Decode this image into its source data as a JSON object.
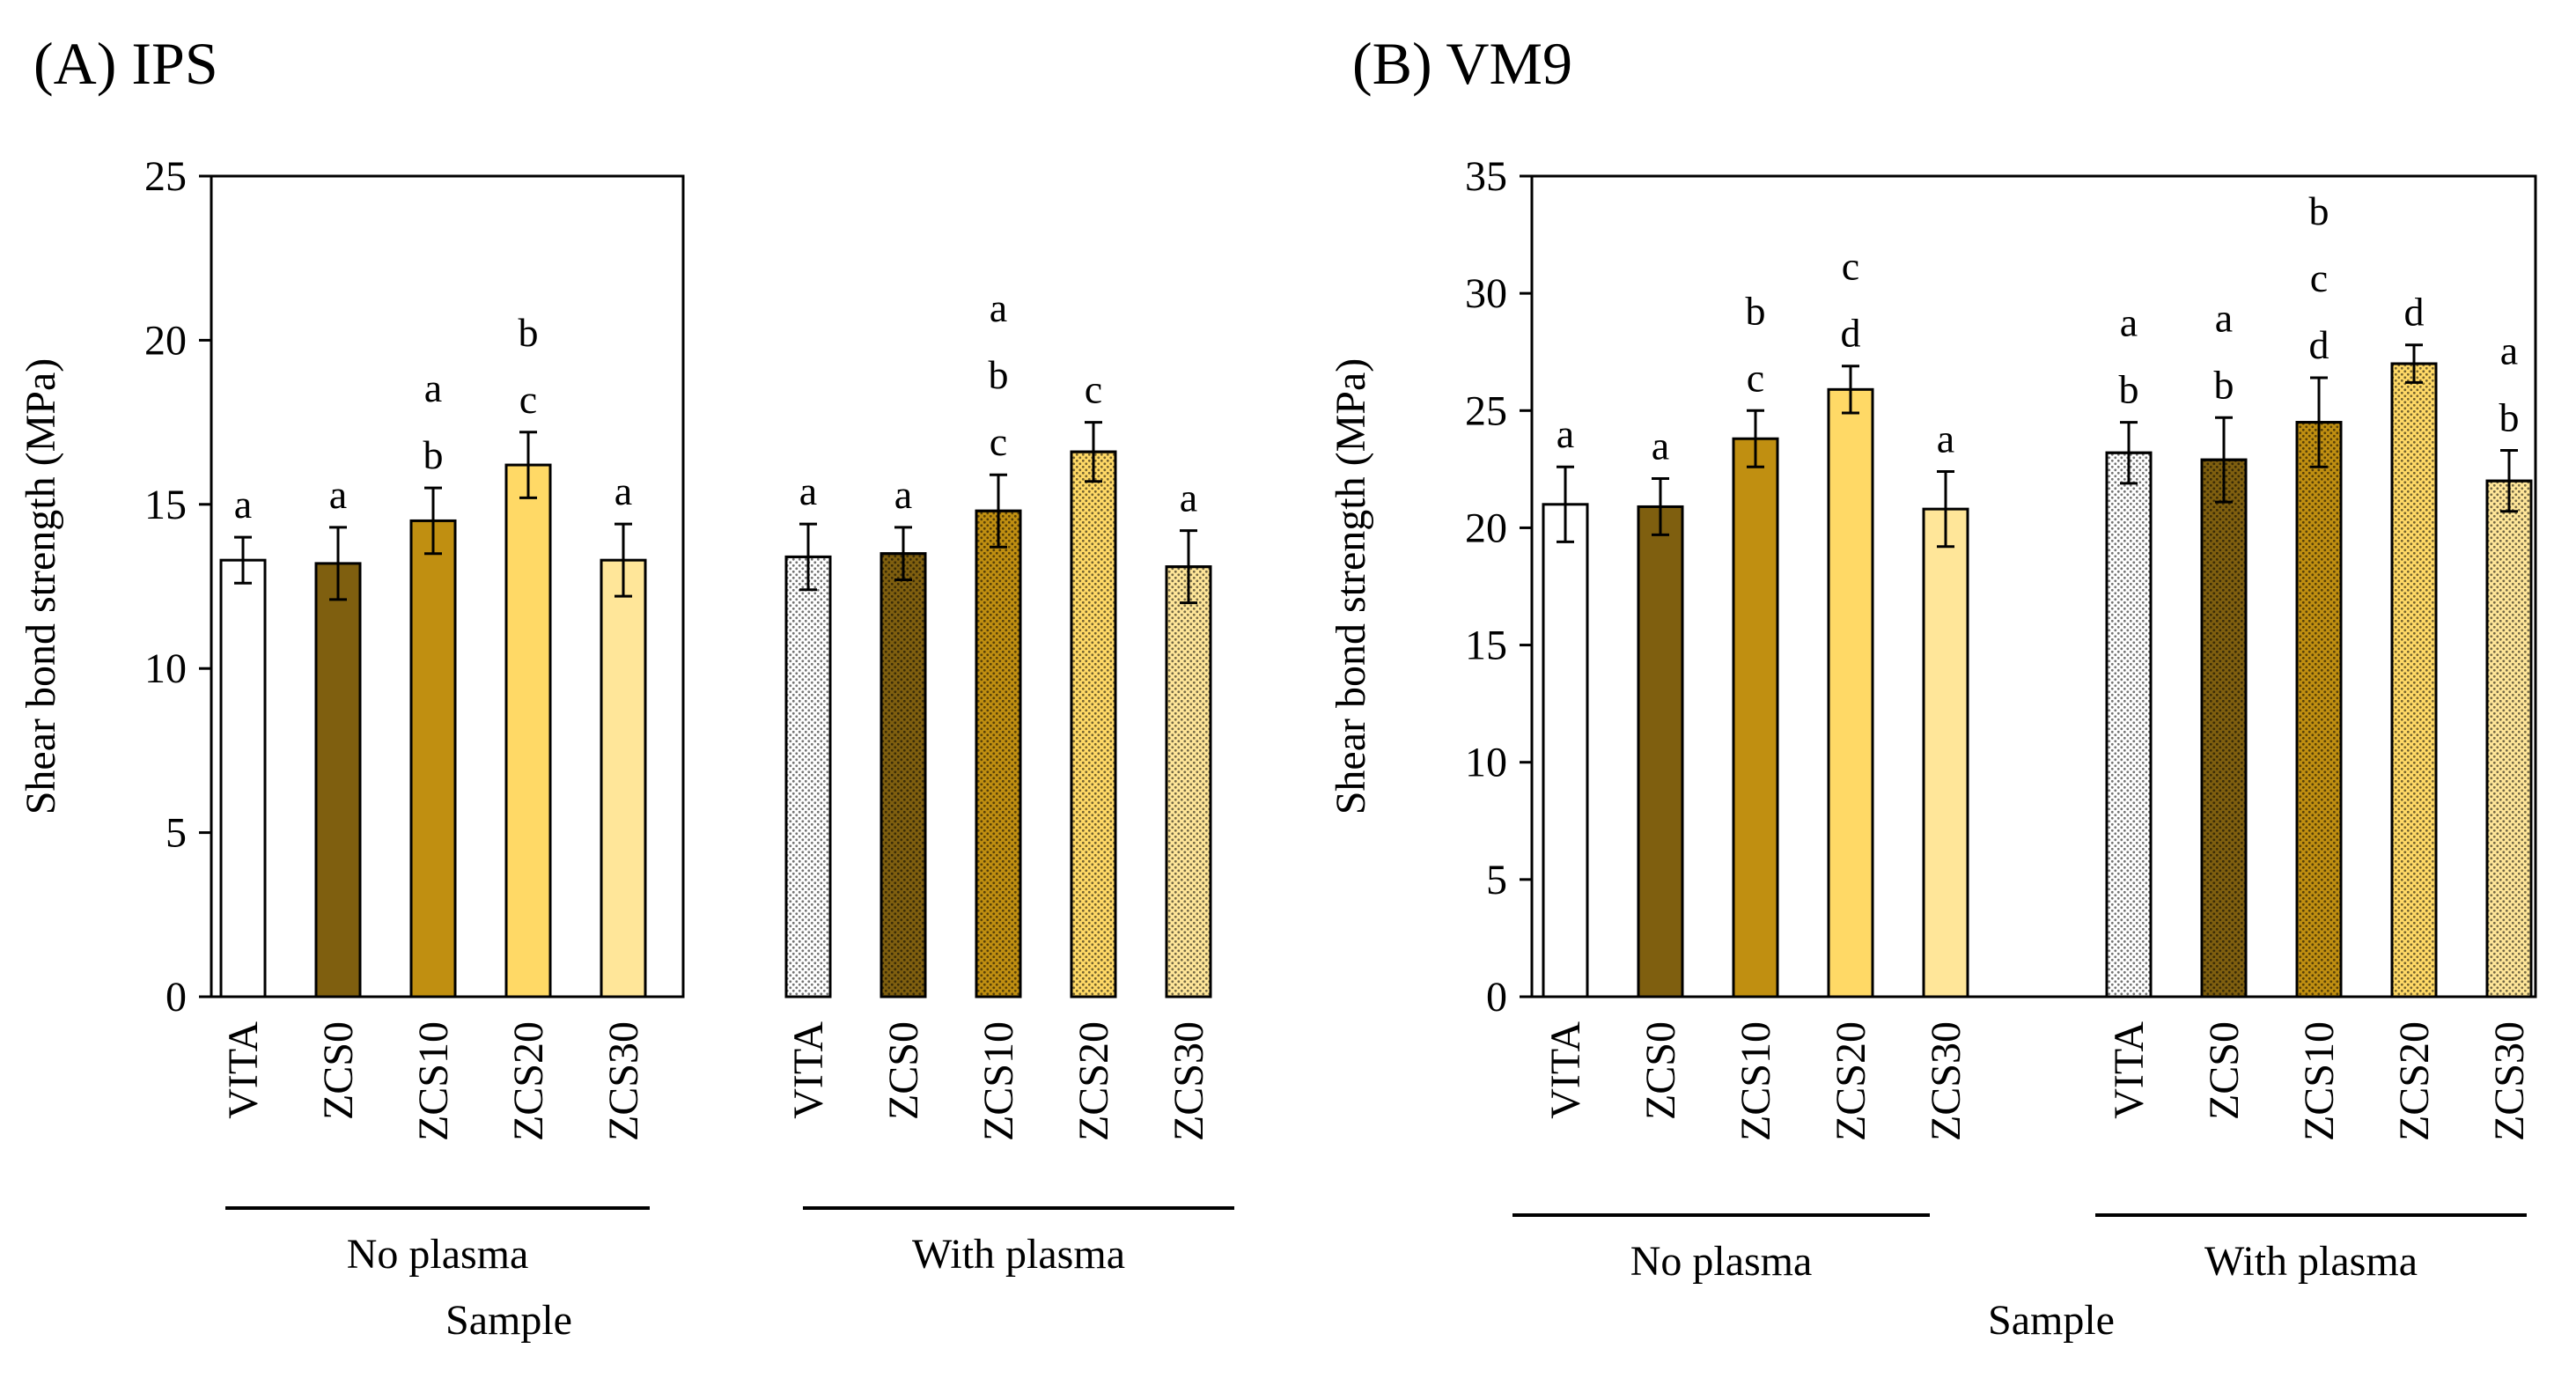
{
  "chart_data": [
    {
      "type": "bar",
      "title": "(A) IPS",
      "xlabel": "Sample",
      "ylabel": "Shear bond strength (MPa)",
      "ylim": [
        0,
        25
      ],
      "yticks": [
        0,
        5,
        10,
        15,
        20,
        25
      ],
      "groups": [
        {
          "name": "No plasma",
          "categories": [
            "VITA",
            "ZCS0",
            "ZCS10",
            "ZCS20",
            "ZCS30"
          ],
          "values": [
            13.3,
            13.2,
            14.5,
            16.2,
            13.3
          ],
          "errors": [
            0.7,
            1.1,
            1.0,
            1.0,
            1.1
          ],
          "letters": [
            [
              "a"
            ],
            [
              "a"
            ],
            [
              "a",
              "b"
            ],
            [
              "b",
              "c"
            ],
            [
              "a"
            ]
          ]
        },
        {
          "name": "With plasma",
          "categories": [
            "VITA",
            "ZCS0",
            "ZCS10",
            "ZCS20",
            "ZCS30"
          ],
          "values": [
            13.4,
            13.5,
            14.8,
            16.6,
            13.1
          ],
          "errors": [
            1.0,
            0.8,
            1.1,
            0.9,
            1.1
          ],
          "letters": [
            [
              "a"
            ],
            [
              "a"
            ],
            [
              "a",
              "b",
              "c"
            ],
            [
              "c"
            ],
            [
              "a"
            ]
          ]
        }
      ]
    },
    {
      "type": "bar",
      "title": "(B) VM9",
      "xlabel": "Sample",
      "ylabel": "Shear bond strength (MPa)",
      "ylim": [
        0,
        35
      ],
      "yticks": [
        0,
        5,
        10,
        15,
        20,
        25,
        30,
        35
      ],
      "groups": [
        {
          "name": "No plasma",
          "categories": [
            "VITA",
            "ZCS0",
            "ZCS10",
            "ZCS20",
            "ZCS30"
          ],
          "values": [
            21.0,
            20.9,
            23.8,
            25.9,
            20.8
          ],
          "errors": [
            1.6,
            1.2,
            1.2,
            1.0,
            1.6
          ],
          "letters": [
            [
              "a"
            ],
            [
              "a"
            ],
            [
              "b",
              "c"
            ],
            [
              "c",
              "d"
            ],
            [
              "a"
            ]
          ]
        },
        {
          "name": "With plasma",
          "categories": [
            "VITA",
            "ZCS0",
            "ZCS10",
            "ZCS20",
            "ZCS30"
          ],
          "values": [
            23.2,
            22.9,
            24.5,
            27.0,
            22.0
          ],
          "errors": [
            1.3,
            1.8,
            1.9,
            0.8,
            1.3
          ],
          "letters": [
            [
              "a",
              "b"
            ],
            [
              "a",
              "b"
            ],
            [
              "b",
              "c",
              "d"
            ],
            [
              "d"
            ],
            [
              "a",
              "b"
            ]
          ]
        }
      ]
    }
  ],
  "colors": {
    "VITA": "#ffffff",
    "ZCS0": "#7f5f0f",
    "ZCS10": "#c08f11",
    "ZCS20": "#ffd966",
    "ZCS30": "#ffe699"
  },
  "plasma_fill": "dotted"
}
